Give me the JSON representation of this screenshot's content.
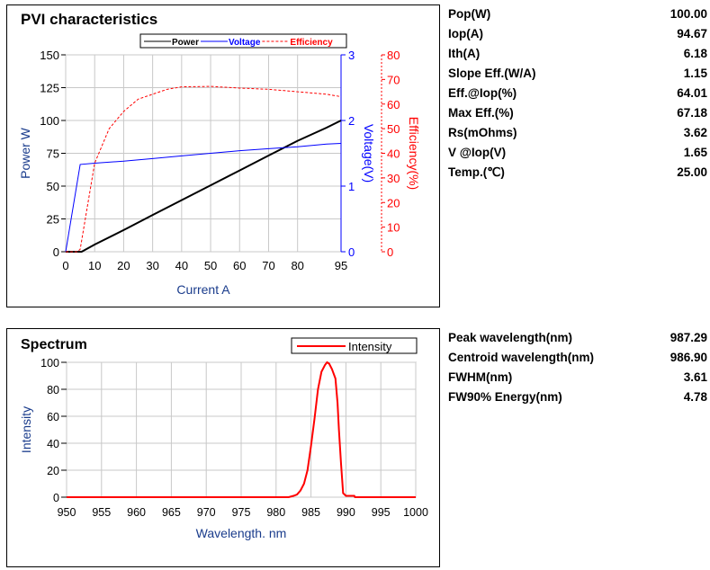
{
  "chart_data": [
    {
      "type": "line",
      "title": "PVI characteristics",
      "xlabel": "Current A",
      "xlim": [
        0,
        95
      ],
      "xticks": [
        0,
        10,
        20,
        30,
        40,
        50,
        60,
        70,
        80,
        95
      ],
      "grid": true,
      "legend_placement": "top",
      "axes": {
        "power": {
          "label": "Power W",
          "lim": [
            0,
            150
          ],
          "ticks": [
            0,
            25,
            50,
            75,
            100,
            125,
            150
          ],
          "color": "#000000"
        },
        "voltage": {
          "label": "Voltage(V)",
          "lim": [
            0,
            3
          ],
          "ticks": [
            0,
            1,
            2,
            3
          ],
          "color": "#0000ff"
        },
        "efficiency": {
          "label": "Efficiency(%)",
          "lim": [
            0,
            80
          ],
          "ticks": [
            0,
            10,
            20,
            30,
            40,
            50,
            60,
            70,
            80
          ],
          "color": "#ff0000"
        }
      },
      "series": [
        {
          "name": "Power",
          "axis": "power",
          "color": "#000000",
          "style": "solid",
          "x": [
            0,
            5.5,
            10,
            20,
            30,
            40,
            50,
            60,
            70,
            80,
            90,
            95
          ],
          "y": [
            0,
            0,
            5.5,
            16.5,
            28,
            39.3,
            50.6,
            61.9,
            73.3,
            84.5,
            94.5,
            100
          ]
        },
        {
          "name": "Voltage",
          "axis": "voltage",
          "color": "#0000ff",
          "style": "solid",
          "x": [
            0,
            5,
            10,
            20,
            30,
            40,
            50,
            60,
            70,
            80,
            90,
            95
          ],
          "y": [
            0,
            1.33,
            1.35,
            1.38,
            1.42,
            1.46,
            1.5,
            1.54,
            1.57,
            1.6,
            1.64,
            1.65
          ]
        },
        {
          "name": "Efficiency",
          "axis": "efficiency",
          "color": "#ff0000",
          "style": "dashed",
          "x": [
            0,
            4,
            5,
            7,
            10,
            15,
            20,
            25,
            30,
            35,
            40,
            50,
            60,
            70,
            80,
            90,
            95
          ],
          "y": [
            0,
            0,
            1,
            15,
            36,
            50,
            57,
            62,
            64,
            66,
            67,
            67.18,
            66.5,
            66,
            65,
            64,
            63
          ]
        }
      ]
    },
    {
      "type": "line",
      "title": "Spectrum",
      "xlabel": "Wavelength. nm",
      "ylabel": "Intensity",
      "xlim": [
        950,
        1000
      ],
      "ylim": [
        0,
        100
      ],
      "xticks": [
        950,
        955,
        960,
        965,
        970,
        975,
        980,
        985,
        990,
        995,
        1000
      ],
      "yticks": [
        0,
        20,
        40,
        60,
        80,
        100
      ],
      "grid": true,
      "legend_placement": "top-right",
      "series": [
        {
          "name": "Intensity",
          "color": "#ff0000",
          "x": [
            950,
            981.8,
            982.5,
            983,
            983.5,
            984,
            984.5,
            985,
            985.5,
            986,
            986.5,
            987,
            987.3,
            987.6,
            988,
            988.5,
            988.8,
            989,
            989.3,
            989.6,
            990,
            991.2,
            991.3,
            1000
          ],
          "y": [
            0,
            0,
            1,
            2,
            5,
            10,
            20,
            38,
            58,
            80,
            93,
            98,
            100,
            99,
            95,
            88,
            70,
            50,
            25,
            3,
            1,
            1,
            0,
            0
          ]
        }
      ]
    }
  ],
  "pvi_params": [
    {
      "label": "Pop(W)",
      "value": "100.00"
    },
    {
      "label": "Iop(A)",
      "value": "94.67"
    },
    {
      "label": "Ith(A)",
      "value": "6.18"
    },
    {
      "label": "Slope Eff.(W/A)",
      "value": "1.15"
    },
    {
      "label": "Eff.@Iop(%)",
      "value": "64.01"
    },
    {
      "label": "Max Eff.(%)",
      "value": "67.18"
    },
    {
      "label": "Rs(mOhms)",
      "value": "3.62"
    },
    {
      "label": "V @Iop(V)",
      "value": "1.65"
    },
    {
      "label": "Temp.(℃)",
      "value": "25.00"
    }
  ],
  "spectrum_params": [
    {
      "label": "Peak wavelength(nm)",
      "value": "987.29"
    },
    {
      "label": "Centroid wavelength(nm)",
      "value": "986.90"
    },
    {
      "label": "FWHM(nm)",
      "value": "3.61"
    },
    {
      "label": "FW90% Energy(nm)",
      "value": "4.78"
    }
  ]
}
